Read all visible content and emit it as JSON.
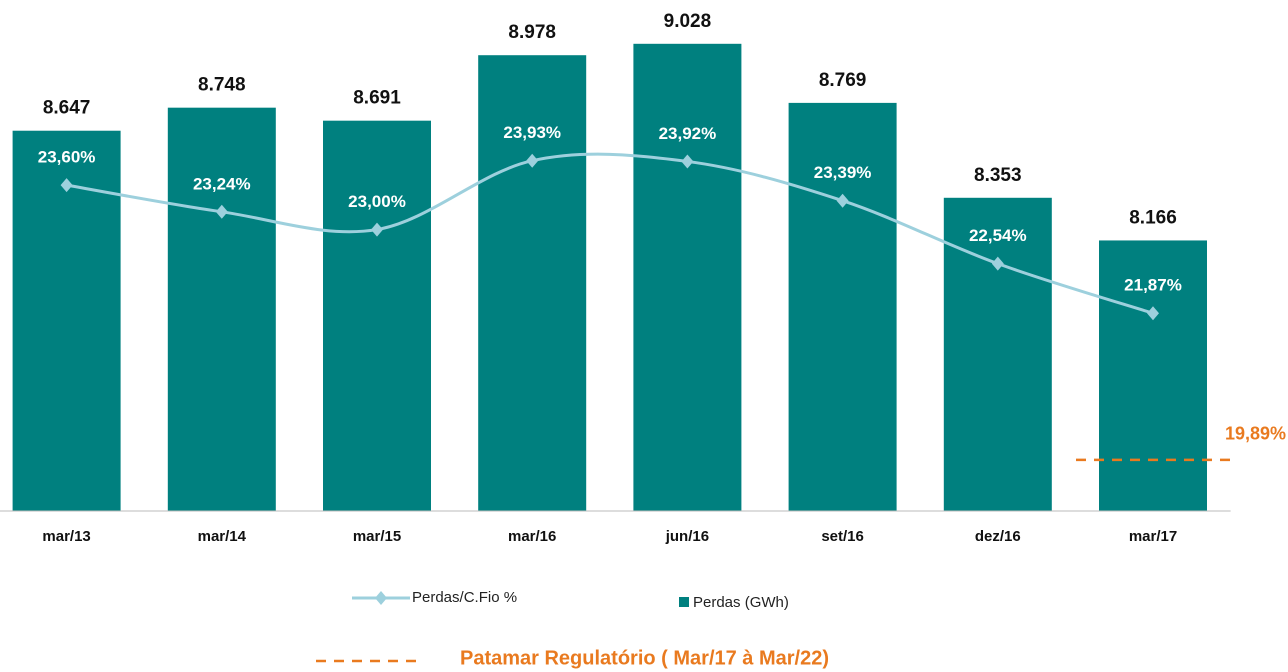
{
  "chart_data": {
    "type": "bar",
    "categories": [
      "mar/13",
      "mar/14",
      "mar/15",
      "mar/16",
      "jun/16",
      "set/16",
      "dez/16",
      "mar/17"
    ],
    "series": [
      {
        "name": "Perdas (GWh)",
        "type": "bar",
        "color": "#00807f",
        "values": [
          8647,
          8748,
          8691,
          8978,
          9028,
          8769,
          8353,
          8166
        ],
        "value_labels": [
          "8.647",
          "8.748",
          "8.691",
          "8.978",
          "9.028",
          "8.769",
          "8.353",
          "8.166"
        ]
      },
      {
        "name": "Perdas/C.Fio %",
        "type": "line",
        "axis": "y2",
        "color": "#9dd0dd",
        "values": [
          23.6,
          23.24,
          23.0,
          23.93,
          23.92,
          23.39,
          22.54,
          21.87
        ],
        "value_labels": [
          "23,60%",
          "23,24%",
          "23,00%",
          "23,93%",
          "23,92%",
          "23,39%",
          "22,54%",
          "21,87%"
        ]
      }
    ],
    "reference_line": {
      "name": "Patamar Regulatório ( Mar/17 à Mar/22)",
      "value": 19.89,
      "value_label": "19,89%",
      "axis": "y2",
      "color": "#e97a1f"
    },
    "ylim": [
      6980,
      9220
    ],
    "y2lim": [
      19.2,
      26.1
    ]
  }
}
